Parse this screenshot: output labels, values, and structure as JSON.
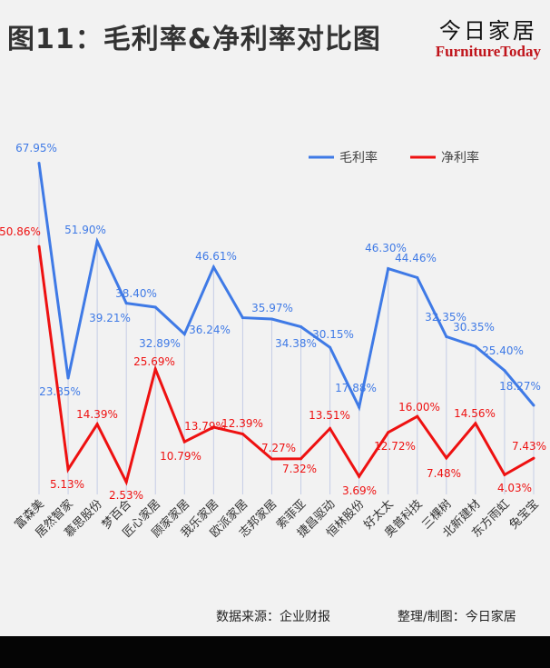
{
  "title": "图11：毛利率&净利率对比图",
  "logo": {
    "cn": "今日家居",
    "en": "FurnitureToday"
  },
  "footer": {
    "source": "数据来源：企业财报",
    "credit": "整理/制图：今日家居"
  },
  "chart_data": {
    "type": "line",
    "title": "图11：毛利率&净利率对比图",
    "categories": [
      "富森美",
      "居然智家",
      "慕思股份",
      "梦百合",
      "匠心家居",
      "顾家家居",
      "我乐家居",
      "欧派家居",
      "志邦家居",
      "索菲亚",
      "捷昌驱动",
      "恒林股份",
      "好太太",
      "奥普科技",
      "三棵树",
      "北新建材",
      "东方雨虹",
      "兔宝宝"
    ],
    "series": [
      {
        "name": "毛利率",
        "color": "#3f7ae6",
        "values": [
          67.95,
          23.85,
          51.9,
          39.21,
          38.4,
          32.89,
          46.61,
          36.24,
          35.97,
          34.38,
          30.15,
          17.88,
          46.3,
          44.46,
          32.35,
          30.35,
          25.4,
          18.27
        ],
        "labels": [
          "67.95%",
          "23.85%",
          "51.90%",
          "39.21%",
          "38.40%",
          "32.89%",
          "46.61%",
          "36.24%",
          "35.97%",
          "34.38%",
          "30.15%",
          "17.88%",
          "46.30%",
          "44.46%",
          "32.35%",
          "30.35%",
          "25.40%",
          "18.27%"
        ]
      },
      {
        "name": "净利率",
        "color": "#ee1111",
        "values": [
          50.86,
          5.13,
          14.39,
          2.53,
          25.69,
          10.79,
          13.79,
          12.39,
          7.27,
          7.32,
          13.51,
          3.69,
          12.72,
          16.0,
          7.48,
          14.56,
          4.03,
          7.43
        ],
        "labels": [
          "50.86%",
          "5.13%",
          "14.39%",
          "2.53%",
          "25.69%",
          "10.79%",
          "13.79%",
          "12.39%",
          "7.27%",
          "7.32%",
          "13.51%",
          "3.69%",
          "12.72%",
          "16.00%",
          "7.48%",
          "14.56%",
          "4.03%",
          "7.43%"
        ]
      }
    ],
    "unit": "%",
    "legend": "top-right",
    "grid": false,
    "drop_lines": true
  }
}
